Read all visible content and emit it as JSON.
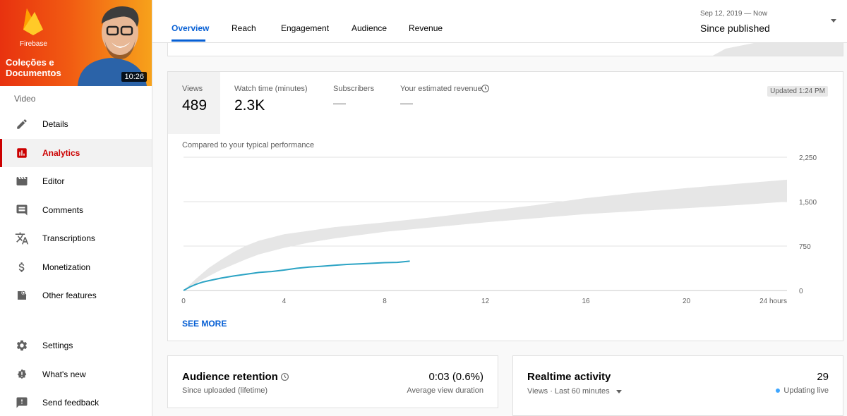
{
  "video": {
    "brand": "Firebase",
    "title_line1": "Coleções e",
    "title_line2": "Documentos",
    "duration": "10:26"
  },
  "sidebar": {
    "section_label": "Video",
    "items": [
      {
        "label": "Details",
        "icon": "pencil-icon"
      },
      {
        "label": "Analytics",
        "icon": "analytics-icon",
        "active": true
      },
      {
        "label": "Editor",
        "icon": "clapperboard-icon"
      },
      {
        "label": "Comments",
        "icon": "comment-icon"
      },
      {
        "label": "Transcriptions",
        "icon": "translate-icon"
      },
      {
        "label": "Monetization",
        "icon": "dollar-icon"
      },
      {
        "label": "Other features",
        "icon": "other-features-icon"
      }
    ],
    "bottom_items": [
      {
        "label": "Settings",
        "icon": "gear-icon"
      },
      {
        "label": "What's new",
        "icon": "whats-new-icon"
      },
      {
        "label": "Send feedback",
        "icon": "feedback-icon"
      }
    ]
  },
  "tabs": [
    "Overview",
    "Reach",
    "Engagement",
    "Audience",
    "Revenue"
  ],
  "date_range": {
    "label": "Sep 12, 2019 — Now",
    "value": "Since published"
  },
  "metrics": {
    "views_label": "Views",
    "views_value": "489",
    "watch_label": "Watch time (minutes)",
    "watch_value": "2.3K",
    "subs_label": "Subscribers",
    "subs_value": "—",
    "revenue_label": "Your estimated revenue",
    "revenue_value": "—",
    "updated": "Updated 1:24 PM"
  },
  "chart_data": {
    "type": "line",
    "title": "Compared to your typical performance",
    "xlabel": "",
    "ylabel": "",
    "x_ticks": [
      "0",
      "4",
      "8",
      "12",
      "16",
      "20",
      "24 hours"
    ],
    "y_ticks": [
      "0",
      "750",
      "1,500",
      "2,250"
    ],
    "xlim": [
      0,
      24
    ],
    "ylim": [
      0,
      2250
    ],
    "grid": true,
    "series": [
      {
        "type": "line",
        "color": "#2ba3c4",
        "x": [
          0,
          0.25,
          0.5,
          0.75,
          1,
          1.5,
          2,
          2.5,
          3,
          3.5,
          4,
          4.5,
          5,
          5.5,
          6,
          6.5,
          7,
          7.5,
          8,
          8.5,
          9
        ],
        "y": [
          0,
          60,
          105,
          140,
          165,
          210,
          245,
          275,
          305,
          320,
          345,
          375,
          395,
          410,
          425,
          440,
          450,
          460,
          470,
          475,
          495
        ]
      },
      {
        "type": "band",
        "color": "#e6e6e6",
        "x": [
          0,
          0.5,
          1,
          1.5,
          2,
          2.5,
          3,
          4,
          5,
          6,
          8,
          10,
          12,
          14,
          16,
          18,
          20,
          22,
          24
        ],
        "lower": [
          0,
          120,
          240,
          350,
          440,
          530,
          610,
          720,
          810,
          880,
          990,
          1070,
          1150,
          1220,
          1290,
          1340,
          1390,
          1440,
          1500
        ],
        "upper": [
          0,
          200,
          380,
          520,
          650,
          760,
          840,
          950,
          1010,
          1070,
          1150,
          1240,
          1340,
          1440,
          1560,
          1650,
          1730,
          1800,
          1870
        ]
      }
    ]
  },
  "see_more": "SEE MORE",
  "retention": {
    "title": "Audience retention",
    "subtitle": "Since uploaded (lifetime)",
    "value": "0:03 (0.6%)",
    "value_label": "Average view duration"
  },
  "realtime": {
    "title": "Realtime activity",
    "subtitle": "Views · Last 60 minutes",
    "value": "29",
    "status": "Updating live"
  }
}
